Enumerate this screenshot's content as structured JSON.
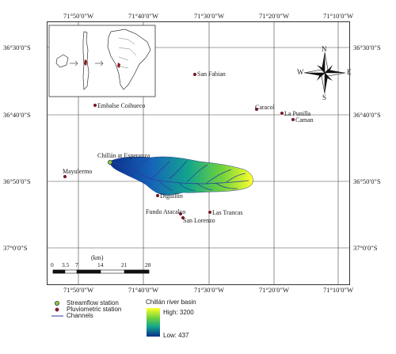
{
  "map": {
    "top_ticks": [
      "71°50′0″W",
      "71°40′0″W",
      "71°30′0″W",
      "71°20′0″W",
      "71°10′0″W"
    ],
    "bottom_ticks": [
      "71°50′0″W",
      "71°40′0″W",
      "71°30′0″W",
      "71°20′0″W",
      "71°10′0″W"
    ],
    "left_ticks": [
      "36°30′0″S",
      "36°40′0″S",
      "36°50′0″S",
      "37°0′0″S"
    ],
    "right_ticks": [
      "36°30′0″S",
      "36°40′0″S",
      "36°50′0″S",
      "37°0′0″S"
    ],
    "places": {
      "san_fabian": "San Fabian",
      "embalse": "Embalse Coihueco",
      "caracol": "Caracol",
      "la_punilla": "La Punilla",
      "caman": "Caman",
      "chillan_esperanza": "Chillán at Esperanza",
      "mayulermo": "Mayulermo",
      "diguillin": "Diguillin",
      "fundo_atacalco": "Fundo Atacalco",
      "las_trancas": "Las Trancas",
      "san_lorenzo": "San Lorenzo"
    },
    "compass": {
      "n": "N",
      "s": "S",
      "e": "E",
      "w": "W"
    },
    "scale": {
      "unit": "(km)",
      "labels": [
        "0",
        "3.5",
        "7",
        "14",
        "21",
        "28"
      ]
    }
  },
  "legend": {
    "streamflow": "Streamflow station",
    "pluviometric": "Pluviometric station",
    "channels": "Channels",
    "basin_title": "Chillán river basin",
    "high": "High: 3200",
    "low": "Low: 437"
  },
  "colors": {
    "station": "#7a1f2b",
    "streamflow": "#8bd12a",
    "channel": "#2b3f9e",
    "elev_low": "#0a2f8c",
    "elev_high": "#ffff2a"
  }
}
